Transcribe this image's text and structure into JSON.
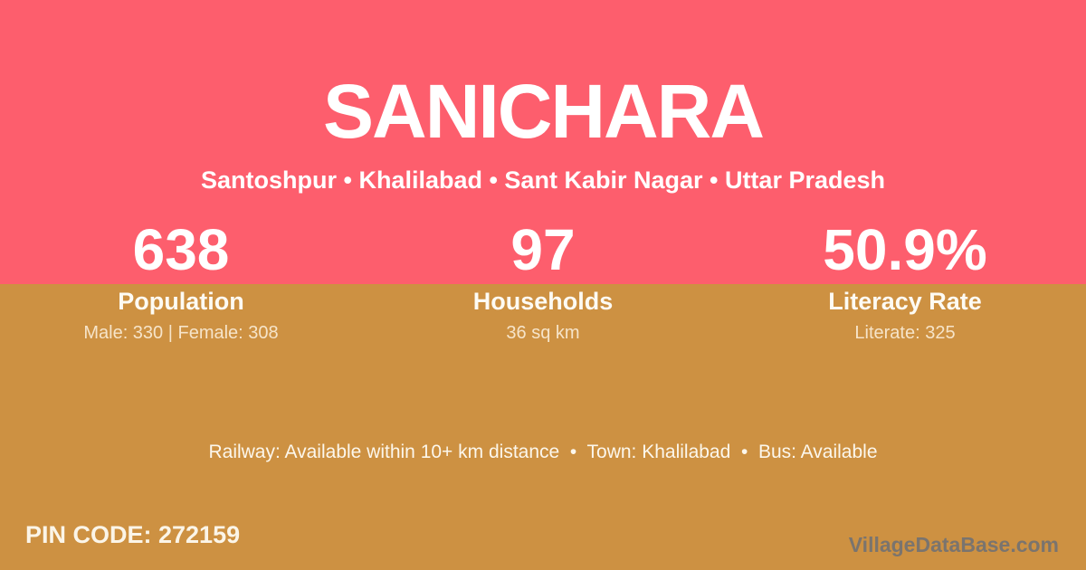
{
  "hero": {
    "title": "SANICHARA",
    "subtitle": "Santoshpur • Khalilabad • Sant Kabir Nagar • Uttar Pradesh"
  },
  "stats": [
    {
      "value": "638",
      "label": "Population",
      "detail": "Male: 330 | Female: 308"
    },
    {
      "value": "97",
      "label": "Households",
      "detail": "36 sq km"
    },
    {
      "value": "50.9%",
      "label": "Literacy Rate",
      "detail": "Literate: 325"
    }
  ],
  "info": {
    "text": "Railway: Available within 10+ km distance  •  Town: Khalilabad  •  Bus: Available"
  },
  "footer": {
    "pin_text": "PIN CODE: 272159",
    "watermark": "VillageDataBase.com"
  },
  "colors": {
    "top_background": "#FD5E6D",
    "bottom_background": "#CD9142",
    "primary_text": "#FFFFFF",
    "muted_text": "#F4E3C4",
    "watermark_text": "#686E78"
  }
}
